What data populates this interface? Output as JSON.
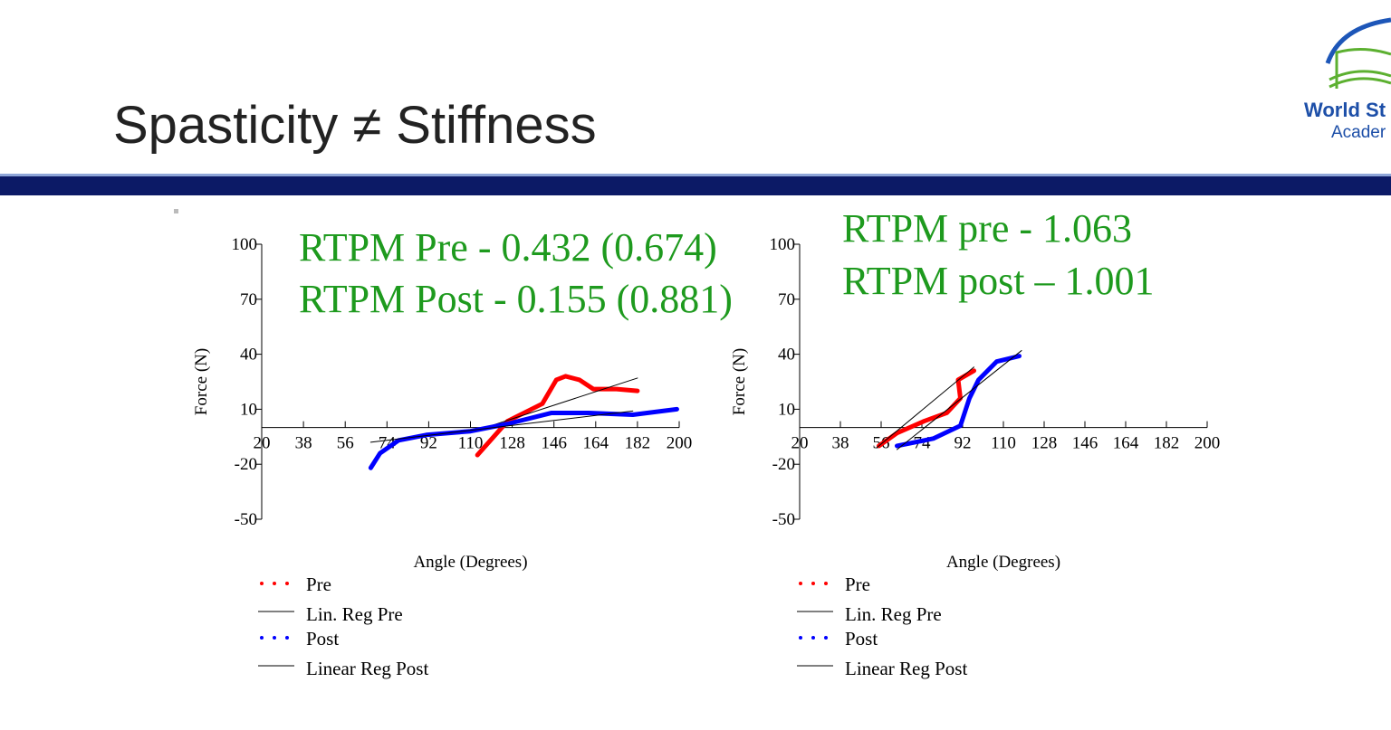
{
  "slide": {
    "title": "Spasticity ≠ Stiffness",
    "logo_line1": "World St",
    "logo_line2": "Acader"
  },
  "chart_data": [
    {
      "type": "line",
      "annotations": [
        "RTPM Pre - 0.432 (0.674)",
        "RTPM Post - 0.155 (0.881)"
      ],
      "x_label": "Angle (Degrees)",
      "y_label": "Force (N)",
      "xlim": [
        20,
        200
      ],
      "xticks": [
        20,
        38,
        56,
        74,
        92,
        110,
        128,
        146,
        164,
        182,
        200
      ],
      "ylim": [
        -50,
        100
      ],
      "yticks": [
        -50,
        -20,
        10,
        40,
        70,
        100
      ],
      "series": [
        {
          "name": "Pre",
          "color": "#ff0000",
          "style": "points",
          "x": [
            113,
            126,
            141,
            147,
            151,
            157,
            163,
            173,
            182
          ],
          "values": [
            -15,
            3.5,
            13,
            26,
            28,
            26,
            21,
            21,
            20
          ]
        },
        {
          "name": "Lin. Reg Pre",
          "color": "#000000",
          "style": "line",
          "x": [
            114,
            182
          ],
          "values": [
            -1,
            27
          ]
        },
        {
          "name": "Post",
          "color": "#0000ff",
          "style": "points",
          "x": [
            67,
            71,
            79,
            91,
            110,
            126,
            145,
            161,
            180,
            199
          ],
          "values": [
            -22,
            -14,
            -7,
            -4,
            -2,
            2,
            8,
            8,
            7,
            10
          ]
        },
        {
          "name": "Linear Reg Post",
          "color": "#000000",
          "style": "line",
          "x": [
            67,
            180
          ],
          "values": [
            -8,
            9
          ]
        }
      ]
    },
    {
      "type": "line",
      "annotations": [
        "RTPM pre - 1.063",
        "RTPM post – 1.001"
      ],
      "x_label": "Angle (Degrees)",
      "y_label": "Force (N)",
      "xlim": [
        20,
        200
      ],
      "xticks": [
        20,
        38,
        56,
        74,
        92,
        110,
        128,
        146,
        164,
        182,
        200
      ],
      "ylim": [
        -50,
        100
      ],
      "yticks": [
        -50,
        -20,
        10,
        40,
        70,
        100
      ],
      "series": [
        {
          "name": "Pre",
          "color": "#ff0000",
          "style": "points",
          "x": [
            55,
            63,
            75,
            85,
            91,
            90,
            97
          ],
          "values": [
            -10,
            -3,
            3.5,
            8,
            16,
            26,
            31
          ]
        },
        {
          "name": "Lin. Reg Pre",
          "color": "#000000",
          "style": "line",
          "x": [
            54,
            97
          ],
          "values": [
            -11,
            33
          ]
        },
        {
          "name": "Post",
          "color": "#0000ff",
          "style": "points",
          "x": [
            63,
            79,
            91,
            95,
            99,
            107,
            117
          ],
          "values": [
            -10,
            -6,
            1,
            16,
            26,
            36,
            39
          ]
        },
        {
          "name": "Linear Reg Post",
          "color": "#000000",
          "style": "line",
          "x": [
            63,
            118
          ],
          "values": [
            -12,
            42
          ]
        }
      ]
    }
  ]
}
